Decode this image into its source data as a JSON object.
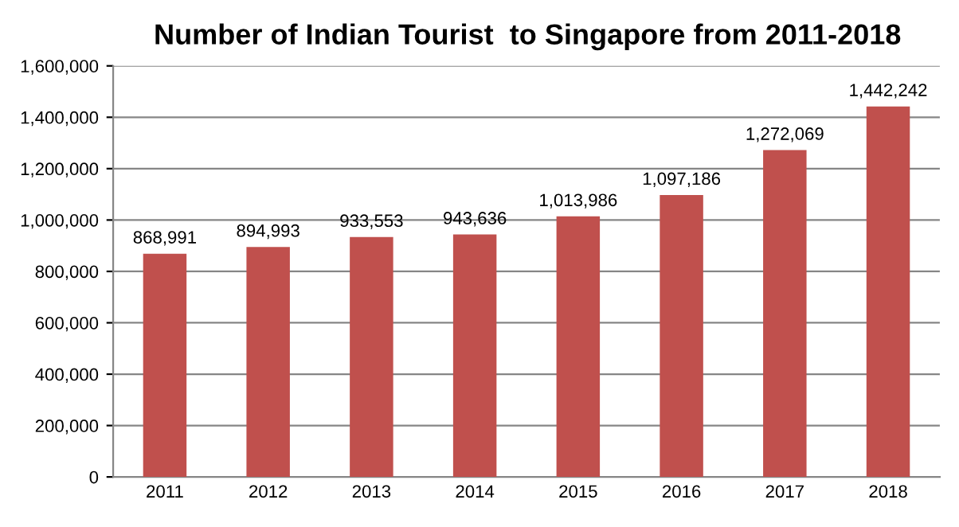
{
  "chart_data": {
    "type": "bar",
    "title": "Number of Indian Tourist  to Singapore from 2011-2018",
    "categories": [
      "2011",
      "2012",
      "2013",
      "2014",
      "2015",
      "2016",
      "2017",
      "2018"
    ],
    "values": [
      868991,
      894993,
      933553,
      943636,
      1013986,
      1097186,
      1272069,
      1442242
    ],
    "value_labels": [
      "868,991",
      "894,993",
      "933,553",
      "943,636",
      "1,013,986",
      "1,097,186",
      "1,272,069",
      "1,442,242"
    ],
    "color": "#c0504d",
    "ylim": [
      0,
      1600000
    ],
    "yticks": [
      0,
      {
        "value": 200000,
        "label": "200,000"
      },
      {
        "value": 400000,
        "label": "400,000"
      },
      {
        "value": 600000,
        "label": "600,000"
      },
      {
        "value": 800000,
        "label": "800,000"
      },
      {
        "value": 1000000,
        "label": "1,000,000"
      },
      {
        "value": 1200000,
        "label": "1,200,000"
      },
      {
        "value": 1400000,
        "label": "1,400,000"
      },
      {
        "value": 1600000,
        "label": "1,600,000"
      }
    ],
    "grid": "y"
  }
}
